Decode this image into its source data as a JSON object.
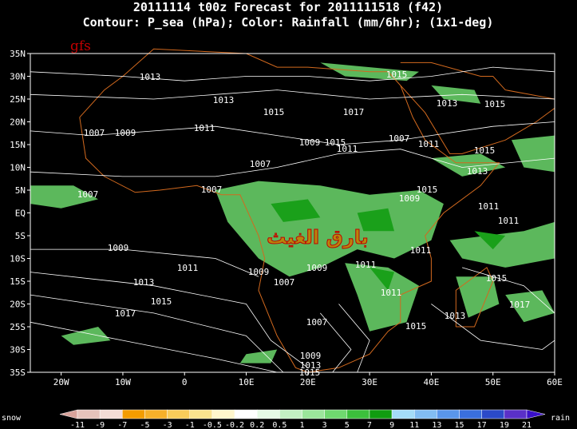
{
  "header": {
    "title": "20111114 t00z Forecast for 2011111518 (f42)",
    "subtitle": "Contour: P_sea (hPa); Color: Rainfall (mm/6hr); (1x1-deg)"
  },
  "map": {
    "logo": "gfs",
    "watermark": "بارق الغيث",
    "lat_labels": [
      "35N",
      "30N",
      "25N",
      "20N",
      "15N",
      "10N",
      "5N",
      "EQ",
      "5S",
      "10S",
      "15S",
      "20S",
      "25S",
      "30S",
      "35S"
    ],
    "lon_labels": [
      "20W",
      "10W",
      "0",
      "10E",
      "20E",
      "30E",
      "40E",
      "50E",
      "60E"
    ],
    "contour_labels": [
      "1013",
      "1013",
      "1015",
      "1017",
      "1015",
      "1013",
      "1015",
      "1011",
      "1007",
      "1009",
      "1009",
      "1015",
      "1011",
      "1007",
      "1011",
      "1015",
      "1007",
      "1013",
      "1015",
      "1007",
      "1007",
      "1009",
      "1011",
      "1011",
      "1009",
      "1011",
      "1009",
      "1011",
      "1011",
      "1013",
      "1009",
      "1007",
      "1015",
      "1015",
      "1017",
      "1011",
      "1013",
      "1017",
      "1007",
      "1015",
      "1009",
      "1013",
      "1015"
    ]
  },
  "colorbar": {
    "left_label": "snow",
    "right_label": "rain",
    "labels": [
      "-11",
      "-9",
      "-7",
      "-5",
      "-3",
      "-1",
      "-0.5",
      "-0.2",
      "0.2",
      "0.5",
      "1",
      "3",
      "5",
      "7",
      "9",
      "11",
      "13",
      "15",
      "17",
      "19",
      "21"
    ]
  }
}
